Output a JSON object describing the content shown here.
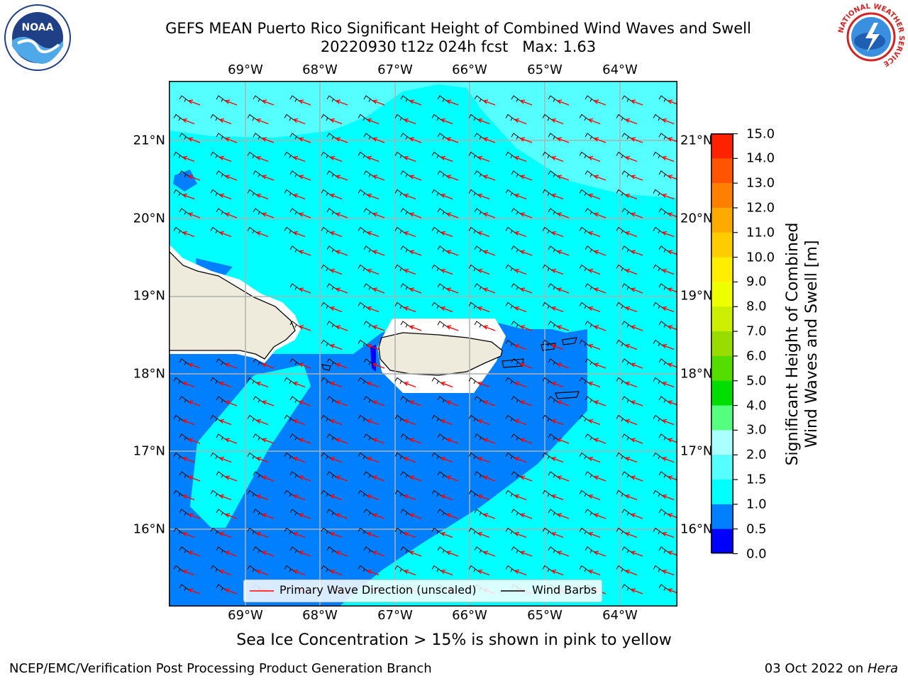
{
  "header": {
    "title_line1": "GEFS MEAN Puerto Rico Significant Height of Combined Wind Waves and Swell",
    "title_line2": "20220930 t12z 024h fcst   Max: 1.63"
  },
  "logos": {
    "noaa_text": "NOAA",
    "nws_text": "NATIONAL WEATHER SERVICE"
  },
  "map": {
    "lon_labels": [
      "69°W",
      "68°W",
      "67°W",
      "66°W",
      "65°W",
      "64°W"
    ],
    "lat_labels": [
      "21°N",
      "20°N",
      "19°N",
      "18°N",
      "17°N",
      "16°N"
    ],
    "ocean_color": "#00ffff",
    "colors": {
      "light_cyan": "#55ffff",
      "blue": "#0080ff",
      "land": "#eeeadc",
      "wave_arrow": "#ff0000",
      "barb": "#000000"
    }
  },
  "legend": {
    "wave_direction": "Primary Wave Direction (unscaled)",
    "wind_barbs": "Wind Barbs"
  },
  "colorbar": {
    "label_line1": "Significant Height of Combined",
    "label_line2": "Wind Waves and Swell [m]",
    "ticks": [
      "0.0",
      "0.5",
      "1.0",
      "1.5",
      "2.0",
      "3.0",
      "4.0",
      "5.0",
      "6.0",
      "7.0",
      "8.0",
      "9.0",
      "10.0",
      "11.0",
      "12.0",
      "13.0",
      "14.0",
      "15.0"
    ],
    "colors": [
      "#0000ff",
      "#0080ff",
      "#00ffff",
      "#55ffff",
      "#aaffff",
      "#55ff80",
      "#00dd00",
      "#55dd00",
      "#99dd00",
      "#ccee00",
      "#eeff00",
      "#ffee00",
      "#ffcc00",
      "#ffaa00",
      "#ff8000",
      "#ff5500",
      "#ff2200"
    ]
  },
  "note": "Sea Ice Concentration > 15% is shown in pink to yellow",
  "footer": {
    "left": "NCEP/EMC/Verification Post Processing Product Generation Branch",
    "right_prefix": "03 Oct 2022 on",
    "right_host": "Hera"
  }
}
